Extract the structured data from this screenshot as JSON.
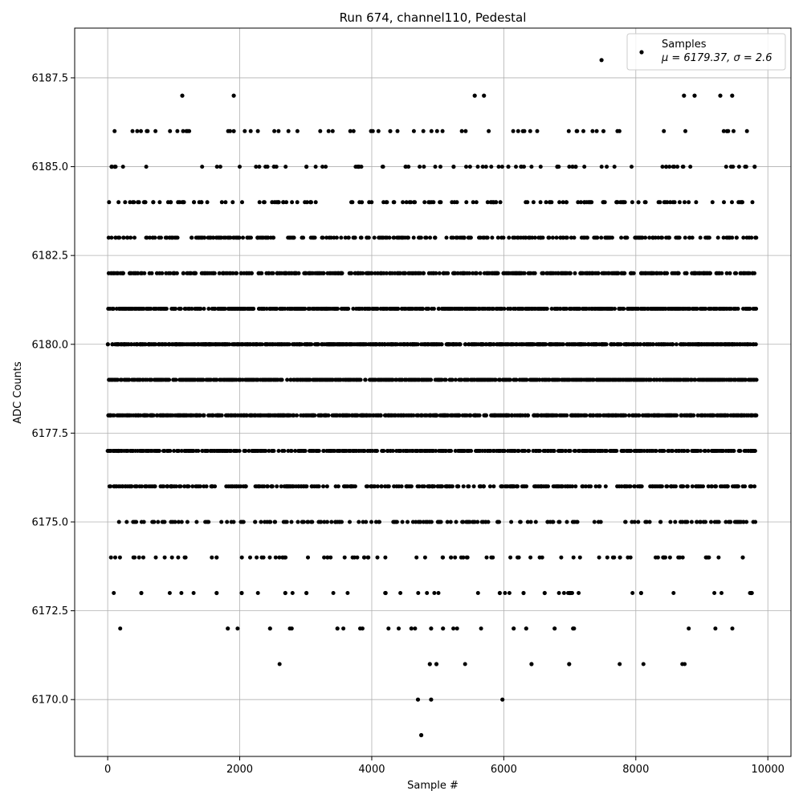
{
  "chart_data": {
    "type": "scatter",
    "title": "Run 674, channel110, Pedestal",
    "xlabel": "Sample #",
    "ylabel": "ADC Counts",
    "xlim": [
      -500,
      10350
    ],
    "ylim": [
      6168.4,
      6188.9
    ],
    "x_ticks": [
      0,
      2000,
      4000,
      6000,
      8000,
      10000
    ],
    "x_tick_labels": [
      "0",
      "2000",
      "4000",
      "6000",
      "8000",
      "10000"
    ],
    "y_ticks": [
      6170.0,
      6172.5,
      6175.0,
      6177.5,
      6180.0,
      6182.5,
      6185.0,
      6187.5
    ],
    "y_tick_labels": [
      "6170.0",
      "6172.5",
      "6175.0",
      "6177.5",
      "6180.0",
      "6182.5",
      "6185.0",
      "6187.5"
    ],
    "grid": true,
    "legend_position": "top-right",
    "series": [
      {
        "name": "Samples",
        "color": "#000000",
        "marker": "dot",
        "sample_count": 9830,
        "value_range": [
          6169,
          6188
        ],
        "x_range": [
          0,
          9830
        ]
      }
    ],
    "legend": {
      "label": "Samples",
      "stats": "μ = 6179.37, σ = 2.6"
    },
    "stats": {
      "mean": 6179.37,
      "sigma": 2.6
    },
    "x": [
      60,
      1130,
      1910,
      5560,
      5700,
      7480,
      8730,
      8890,
      9280,
      9460,
      1910,
      4280,
      6290,
      7510,
      9380,
      110,
      3010,
      3800,
      5240,
      8460,
      6810,
      7090,
      9800,
      4880,
      3850,
      5850,
      7220,
      6950,
      8040,
      4960,
      5400,
      6560,
      2270,
      8260,
      4620,
      7820,
      3310,
      4770,
      4200,
      250,
      5020,
      5940,
      7350,
      2960,
      9590,
      160,
      9740,
      510,
      1650,
      2030,
      2690,
      3010,
      4210,
      5940,
      6300,
      6620,
      7000,
      8080,
      9750,
      1820,
      2460,
      3480,
      4600,
      4900,
      5080,
      6150,
      6340,
      6770,
      7050,
      4880,
      4980,
      6420,
      6990,
      4700,
      4900,
      5980,
      4750,
      1650,
      2650,
      5200,
      3330,
      3450,
      7760,
      6520,
      8420,
      9620
    ],
    "y": [
      6185,
      6187,
      6187,
      6187,
      6187,
      6188,
      6187,
      6187,
      6187,
      6187,
      6186,
      6186,
      6186,
      6186,
      6186,
      6185,
      6185,
      6185,
      6185,
      6185,
      6185,
      6185,
      6185,
      6184,
      6184,
      6184,
      6184,
      6184,
      6184,
      6183,
      6183,
      6183,
      6183,
      6183,
      6182,
      6182,
      6181,
      6181,
      6180,
      6180,
      6179,
      6179,
      6178,
      6178,
      6178,
      6177,
      6177,
      6173,
      6173,
      6173,
      6173,
      6173,
      6173,
      6173,
      6173,
      6173,
      6173,
      6173,
      6173,
      6172,
      6172,
      6172,
      6172,
      6172,
      6172,
      6172,
      6172,
      6172,
      6172,
      6171,
      6171,
      6171,
      6171,
      6170,
      6170,
      6170,
      6169,
      6174,
      6174,
      6174,
      6174,
      6175,
      6174,
      6176,
      6174,
      6174
    ]
  }
}
